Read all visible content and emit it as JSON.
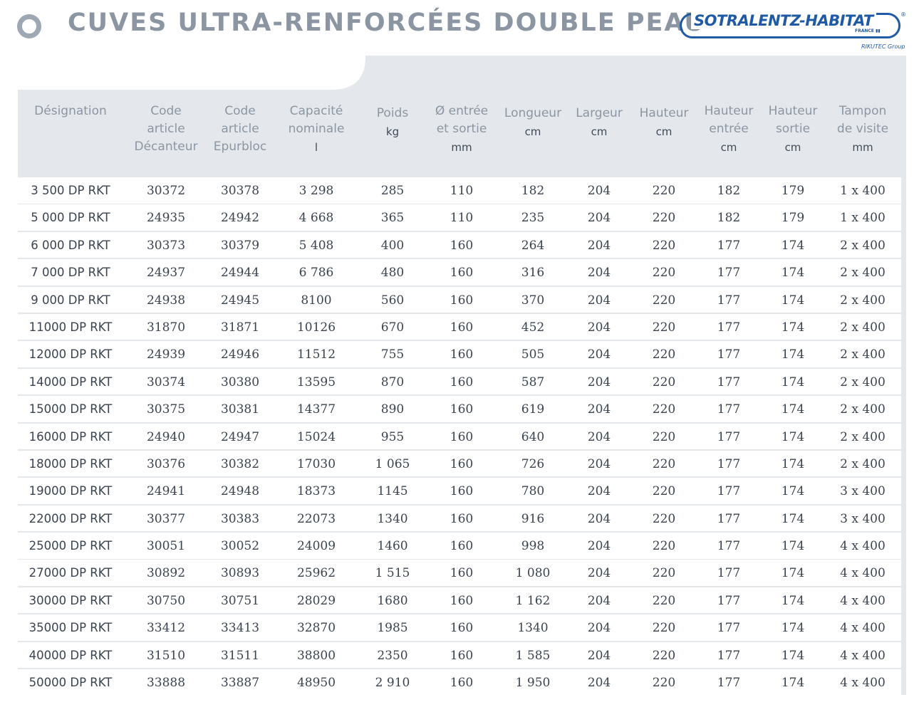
{
  "header": {
    "title": "CUVES ULTRA-RENFORCÉES DOUBLE PEAU",
    "logo": {
      "brand": "SOTRALENTZ-HABITAT",
      "registered": "®",
      "country": "FRANCE ▮▮",
      "group": "RIKUTEC Group"
    }
  },
  "table": {
    "columns": [
      {
        "lines": [
          "Désignation"
        ],
        "unit": ""
      },
      {
        "lines": [
          "Code",
          "article",
          "Décanteur"
        ],
        "unit": ""
      },
      {
        "lines": [
          "Code",
          "article",
          "Epurbloc"
        ],
        "unit": ""
      },
      {
        "lines": [
          "Capacité",
          "nominale"
        ],
        "unit": "l"
      },
      {
        "lines": [
          "Poids"
        ],
        "unit": "kg"
      },
      {
        "lines": [
          "Ø entrée",
          "et sortie"
        ],
        "unit": "mm"
      },
      {
        "lines": [
          "Longueur"
        ],
        "unit": "cm"
      },
      {
        "lines": [
          "Largeur"
        ],
        "unit": "cm"
      },
      {
        "lines": [
          "Hauteur"
        ],
        "unit": "cm"
      },
      {
        "lines": [
          "Hauteur",
          "entrée"
        ],
        "unit": "cm"
      },
      {
        "lines": [
          "Hauteur",
          "sortie"
        ],
        "unit": "cm"
      },
      {
        "lines": [
          "Tampon",
          "de visite"
        ],
        "unit": "mm"
      }
    ],
    "rows": [
      [
        "3 500 DP RKT",
        "30372",
        "30378",
        "3 298",
        "285",
        "110",
        "182",
        "204",
        "220",
        "182",
        "179",
        "1 x 400"
      ],
      [
        "5 000 DP RKT",
        "24935",
        "24942",
        "4 668",
        "365",
        "110",
        "235",
        "204",
        "220",
        "182",
        "179",
        "1 x 400"
      ],
      [
        "6 000 DP RKT",
        "30373",
        "30379",
        "5 408",
        "400",
        "160",
        "264",
        "204",
        "220",
        "177",
        "174",
        "2 x 400"
      ],
      [
        "7 000 DP RKT",
        "24937",
        "24944",
        "6 786",
        "480",
        "160",
        "316",
        "204",
        "220",
        "177",
        "174",
        "2 x 400"
      ],
      [
        "9 000 DP RKT",
        "24938",
        "24945",
        "8100",
        "560",
        "160",
        "370",
        "204",
        "220",
        "177",
        "174",
        "2 x 400"
      ],
      [
        "11000 DP RKT",
        "31870",
        "31871",
        "10126",
        "670",
        "160",
        "452",
        "204",
        "220",
        "177",
        "174",
        "2 x 400"
      ],
      [
        "12000 DP RKT",
        "24939",
        "24946",
        "11512",
        "755",
        "160",
        "505",
        "204",
        "220",
        "177",
        "174",
        "2 x 400"
      ],
      [
        "14000 DP RKT",
        "30374",
        "30380",
        "13595",
        "870",
        "160",
        "587",
        "204",
        "220",
        "177",
        "174",
        "2 x 400"
      ],
      [
        "15000 DP RKT",
        "30375",
        "30381",
        "14377",
        "890",
        "160",
        "619",
        "204",
        "220",
        "177",
        "174",
        "2 x 400"
      ],
      [
        "16000 DP RKT",
        "24940",
        "24947",
        "15024",
        "955",
        "160",
        "640",
        "204",
        "220",
        "177",
        "174",
        "2 x 400"
      ],
      [
        "18000 DP RKT",
        "30376",
        "30382",
        "17030",
        "1 065",
        "160",
        "726",
        "204",
        "220",
        "177",
        "174",
        "2 x 400"
      ],
      [
        "19000 DP RKT",
        "24941",
        "24948",
        "18373",
        "1145",
        "160",
        "780",
        "204",
        "220",
        "177",
        "174",
        "3 x 400"
      ],
      [
        "22000 DP RKT",
        "30377",
        "30383",
        "22073",
        "1340",
        "160",
        "916",
        "204",
        "220",
        "177",
        "174",
        "3 x 400"
      ],
      [
        "25000 DP RKT",
        "30051",
        "30052",
        "24009",
        "1460",
        "160",
        "998",
        "204",
        "220",
        "177",
        "174",
        "4 x 400"
      ],
      [
        "27000 DP RKT",
        "30892",
        "30893",
        "25962",
        "1 515",
        "160",
        "1 080",
        "204",
        "220",
        "177",
        "174",
        "4 x 400"
      ],
      [
        "30000 DP RKT",
        "30750",
        "30751",
        "28029",
        "1680",
        "160",
        "1 162",
        "204",
        "220",
        "177",
        "174",
        "4 x 400"
      ],
      [
        "35000 DP RKT",
        "33412",
        "33413",
        "32870",
        "1985",
        "160",
        "1340",
        "204",
        "220",
        "177",
        "174",
        "4 x 400"
      ],
      [
        "40000 DP RKT",
        "31510",
        "31511",
        "38800",
        "2350",
        "160",
        "1 585",
        "204",
        "220",
        "177",
        "174",
        "4 x 400"
      ],
      [
        "50000 DP RKT",
        "33888",
        "33887",
        "48950",
        "2 910",
        "160",
        "1 950",
        "204",
        "220",
        "177",
        "174",
        "4 x 400"
      ]
    ]
  }
}
